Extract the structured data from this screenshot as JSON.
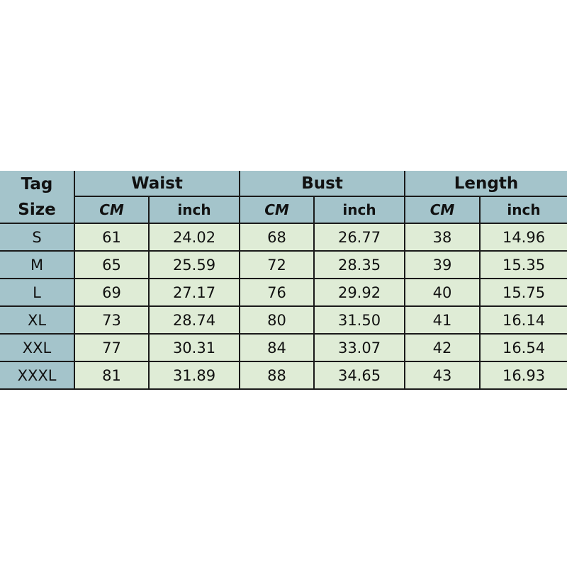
{
  "header": {
    "tag_size": "Tag Size",
    "groups": [
      "Waist",
      "Bust",
      "Length"
    ],
    "units": [
      "CM",
      "inch",
      "CM",
      "inch",
      "CM",
      "inch"
    ]
  },
  "rows": [
    [
      "S",
      "61",
      "24.02",
      "68",
      "26.77",
      "38",
      "14.96"
    ],
    [
      "M",
      "65",
      "25.59",
      "72",
      "28.35",
      "39",
      "15.35"
    ],
    [
      "L",
      "69",
      "27.17",
      "76",
      "29.92",
      "40",
      "15.75"
    ],
    [
      "XL",
      "73",
      "28.74",
      "80",
      "31.50",
      "41",
      "16.14"
    ],
    [
      "XXL",
      "77",
      "30.31",
      "84",
      "33.07",
      "42",
      "16.54"
    ],
    [
      "XXXL",
      "81",
      "31.89",
      "88",
      "34.65",
      "43",
      "16.93"
    ]
  ],
  "colors": {
    "header": "#a4c4cb",
    "body": "#dfecd6"
  }
}
